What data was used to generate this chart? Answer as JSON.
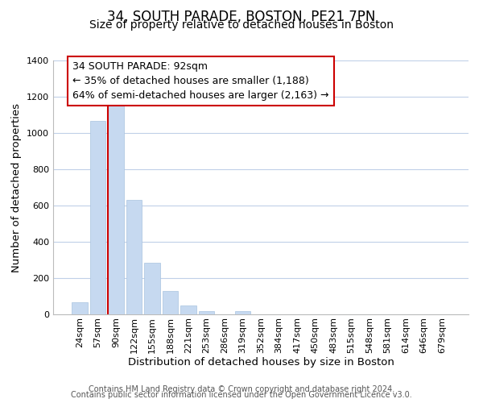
{
  "title": "34, SOUTH PARADE, BOSTON, PE21 7PN",
  "subtitle": "Size of property relative to detached houses in Boston",
  "xlabel": "Distribution of detached houses by size in Boston",
  "ylabel": "Number of detached properties",
  "footer_line1": "Contains HM Land Registry data © Crown copyright and database right 2024.",
  "footer_line2": "Contains public sector information licensed under the Open Government Licence v3.0.",
  "annotation_line1": "34 SOUTH PARADE: 92sqm",
  "annotation_line2": "← 35% of detached houses are smaller (1,188)",
  "annotation_line3": "64% of semi-detached houses are larger (2,163) →",
  "bar_labels": [
    "24sqm",
    "57sqm",
    "90sqm",
    "122sqm",
    "155sqm",
    "188sqm",
    "221sqm",
    "253sqm",
    "286sqm",
    "319sqm",
    "352sqm",
    "384sqm",
    "417sqm",
    "450sqm",
    "483sqm",
    "515sqm",
    "548sqm",
    "581sqm",
    "614sqm",
    "646sqm",
    "679sqm"
  ],
  "bar_values": [
    65,
    1065,
    1160,
    630,
    285,
    130,
    47,
    18,
    0,
    20,
    0,
    0,
    0,
    0,
    0,
    0,
    0,
    0,
    0,
    0,
    0
  ],
  "bar_color": "#c6d9f0",
  "bar_edge_color": "#a8c4e0",
  "highlight_bar_index": 2,
  "highlight_line_color": "#cc0000",
  "ylim": [
    0,
    1400
  ],
  "yticks": [
    0,
    200,
    400,
    600,
    800,
    1000,
    1200,
    1400
  ],
  "grid_color": "#c0d0e8",
  "background_color": "#ffffff",
  "title_fontsize": 12,
  "subtitle_fontsize": 10,
  "axis_label_fontsize": 9.5,
  "tick_fontsize": 8,
  "annotation_box_edge_color": "#cc0000",
  "annotation_fontsize": 9,
  "footer_fontsize": 7,
  "footer_color": "#555555"
}
